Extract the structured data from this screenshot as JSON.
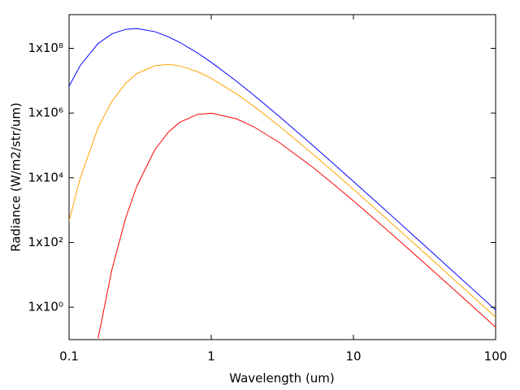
{
  "chart_data": {
    "type": "line",
    "xlabel": "Wavelength (um)",
    "ylabel": "Radiance (W/m2/str/um)",
    "xscale": "log",
    "yscale": "log",
    "x": [
      0.1,
      0.12,
      0.16,
      0.2,
      0.25,
      0.3,
      0.4,
      0.5,
      0.6,
      0.8,
      1,
      1.5,
      2,
      3,
      5,
      7,
      10,
      15,
      20,
      30,
      50,
      70,
      100
    ],
    "series": [
      {
        "color": "#0000ff",
        "values": [
          6730000,
          29700000,
          141000000,
          280000000,
          387000000,
          408000000,
          328000000,
          227000000,
          153000000,
          72100000,
          37000000,
          9750000,
          3530000,
          796000,
          114300,
          31050,
          7699,
          1558,
          499,
          99.8,
          13.06,
          3.41,
          0.822
        ]
      },
      {
        "color": "#ffa500",
        "values": [
          460,
          10000,
          352000,
          2310000,
          8330000,
          16540000,
          29000000,
          31800000,
          28700000,
          19100000,
          11900000,
          3970000,
          1606000,
          400000,
          61900,
          17350,
          4395,
          904,
          292,
          58.9,
          7.76,
          2.033,
          0.491
        ]
      },
      {
        "color": "#ff0000",
        "values": [
          null,
          null,
          0.109,
          14.4,
          567,
          5601,
          72200,
          260000,
          517000,
          908000,
          992000,
          668000,
          372000,
          124200,
          23680,
          7201,
          1935,
          416,
          137.3,
          28.3,
          3.79,
          0.999,
          0.2424
        ]
      }
    ],
    "xlim": [
      0.1,
      100
    ],
    "ylim": [
      0.1,
      1100000000
    ],
    "xticks": [
      0.1,
      1,
      10,
      100
    ],
    "yticks": [
      {
        "value": 1,
        "label": "1x10⁰"
      },
      {
        "value": 100,
        "label": "1x10²"
      },
      {
        "value": 10000,
        "label": "1x10⁴"
      },
      {
        "value": 1000000,
        "label": "1x10⁶"
      },
      {
        "value": 100000000,
        "label": "1x10⁸"
      }
    ]
  }
}
